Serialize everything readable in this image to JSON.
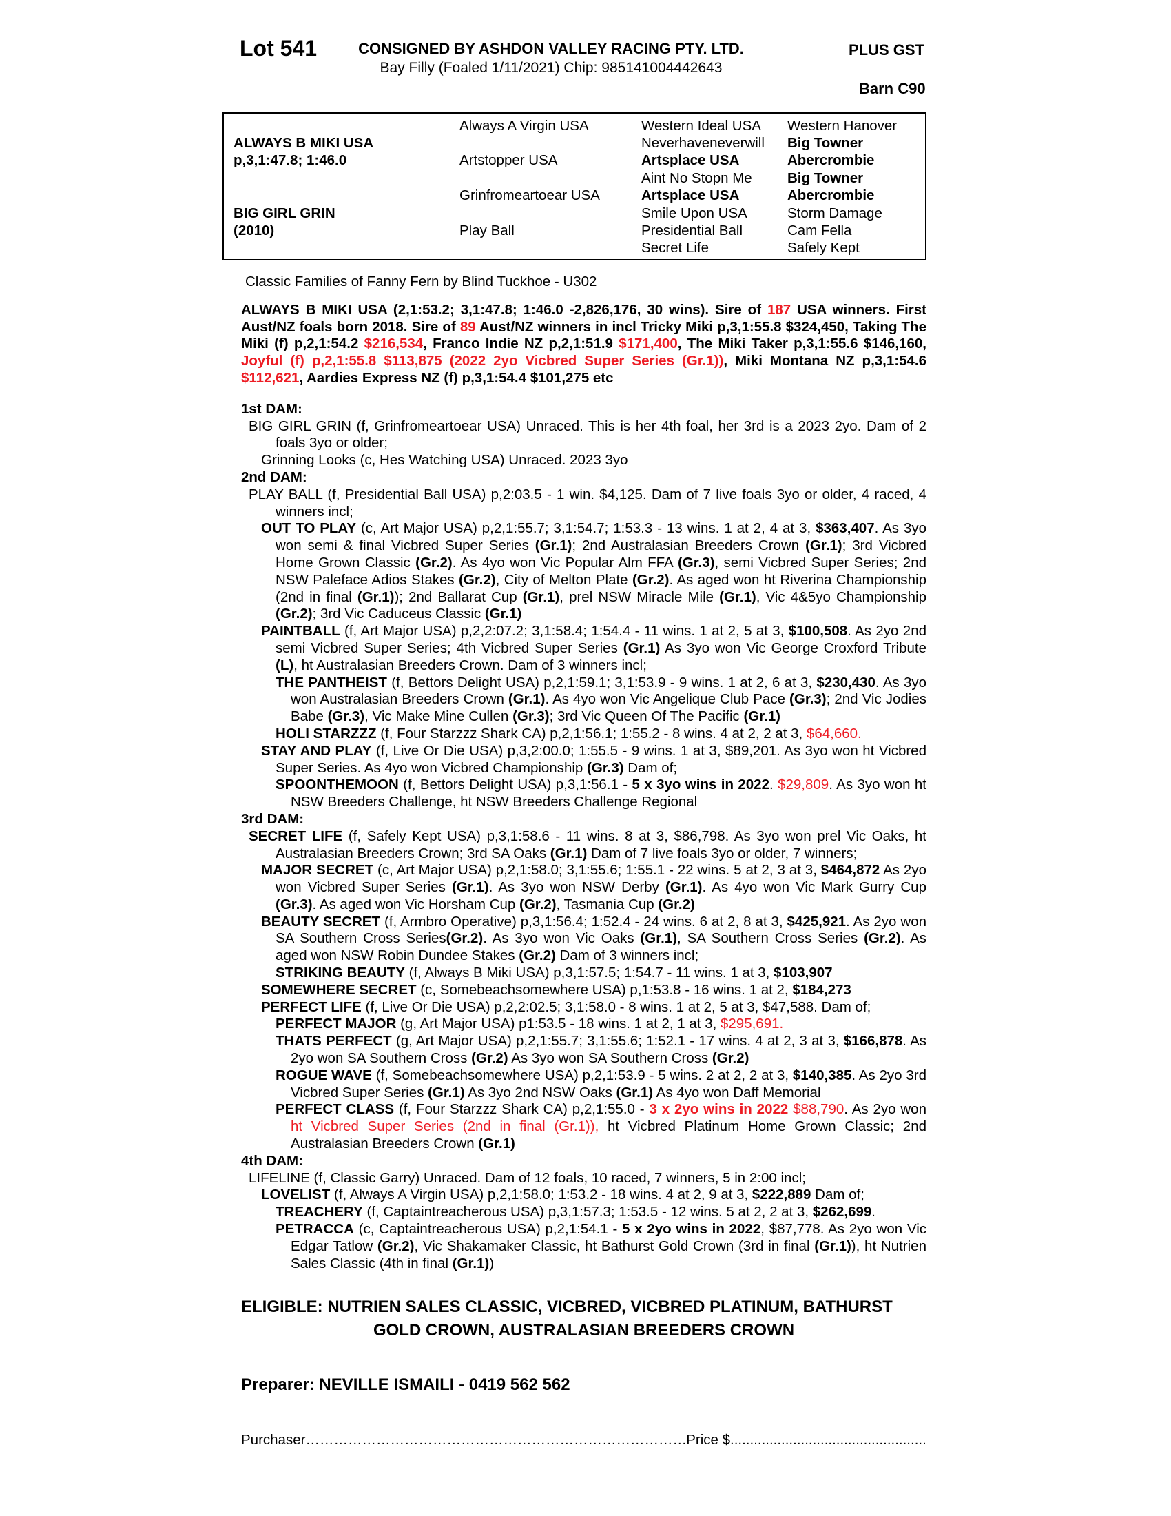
{
  "colors": {
    "text": "#000000",
    "accent_red": "#ed1c24",
    "page_bg": "#ffffff"
  },
  "header": {
    "lot": "Lot 541",
    "consignor": "CONSIGNED BY ASHDON VALLEY RACING PTY. LTD.",
    "plus_gst": "PLUS GST",
    "description": "Bay Filly (Foaled 1/11/2021) Chip: 985141004442643",
    "barn": "Barn C90"
  },
  "pedigree_table": {
    "cells": [
      {
        "row": 2,
        "col": 1,
        "t": "ALWAYS B MIKI USA",
        "b": true
      },
      {
        "row": 3,
        "col": 1,
        "t": "p,3,1:47.8; 1:46.0",
        "b": true
      },
      {
        "row": 6,
        "col": 1,
        "t": "BIG GIRL GRIN",
        "b": true
      },
      {
        "row": 7,
        "col": 1,
        "t": "(2010)",
        "b": true
      },
      {
        "row": 1,
        "col": 2,
        "t": "Always A Virgin USA",
        "b": false
      },
      {
        "row": 3,
        "col": 2,
        "t": "Artstopper USA",
        "b": false
      },
      {
        "row": 5,
        "col": 2,
        "t": "Grinfromeartoear USA",
        "b": false
      },
      {
        "row": 7,
        "col": 2,
        "t": "Play Ball",
        "b": false
      },
      {
        "row": 1,
        "col": 3,
        "t": "Western Ideal USA",
        "b": false
      },
      {
        "row": 2,
        "col": 3,
        "t": "Neverhaveneverwill",
        "b": false
      },
      {
        "row": 3,
        "col": 3,
        "t": "Artsplace USA",
        "b": true
      },
      {
        "row": 4,
        "col": 3,
        "t": "Aint No Stopn Me",
        "b": false
      },
      {
        "row": 5,
        "col": 3,
        "t": "Artsplace USA",
        "b": true
      },
      {
        "row": 6,
        "col": 3,
        "t": "Smile Upon USA",
        "b": false
      },
      {
        "row": 7,
        "col": 3,
        "t": "Presidential Ball",
        "b": false
      },
      {
        "row": 8,
        "col": 3,
        "t": "Secret Life",
        "b": false
      },
      {
        "row": 1,
        "col": 4,
        "t": "Western Hanover",
        "b": false
      },
      {
        "row": 2,
        "col": 4,
        "t": "Big Towner",
        "b": true
      },
      {
        "row": 3,
        "col": 4,
        "t": "Abercrombie",
        "b": true
      },
      {
        "row": 4,
        "col": 4,
        "t": "Big Towner",
        "b": true
      },
      {
        "row": 5,
        "col": 4,
        "t": "Abercrombie",
        "b": true
      },
      {
        "row": 6,
        "col": 4,
        "t": "Storm Damage",
        "b": false
      },
      {
        "row": 7,
        "col": 4,
        "t": "Cam Fella",
        "b": false
      },
      {
        "row": 8,
        "col": 4,
        "t": "Safely Kept",
        "b": false
      }
    ]
  },
  "family_line": "Classic Families of Fanny Fern by Blind Tuckhoe - U302",
  "sire_summary": {
    "runs": [
      [
        "ALWAYS B MIKI USA (2,1:53.2; 3,1:47.8; 1:46.0 -2,826,176, 30 wins). Sire of ",
        "b"
      ],
      [
        "187",
        "br"
      ],
      [
        " USA winners. First Aust/NZ foals born 2018. Sire of ",
        "b"
      ],
      [
        "89",
        "br"
      ],
      [
        " Aust/NZ winners in incl Tricky Miki p,3,1:55.8 $324,450, Taking The Miki (f) p,2,1:54.2 ",
        "b"
      ],
      [
        "$216,534",
        "br"
      ],
      [
        ", Franco Indie NZ p,2,1:51.9 ",
        "b"
      ],
      [
        "$171,400",
        "br"
      ],
      [
        ", The Miki Taker p,3,1:55.6 $146,160, ",
        "b"
      ],
      [
        "Joyful (f) p,2,1:55.8 $113,875 (2022 2yo Vicbred Super Series (Gr.1))",
        "br"
      ],
      [
        ", Miki Montana NZ p,3,1:54.6 ",
        "b"
      ],
      [
        "$112,621",
        "br"
      ],
      [
        ", Aardies Express NZ (f) p,3,1:54.4 $101,275 etc",
        "b"
      ]
    ]
  },
  "body": [
    {
      "kind": "heading",
      "text": "1st DAM:"
    },
    {
      "kind": "para",
      "level": "dam",
      "runs": [
        [
          "BIG GIRL GRIN (f, Grinfromeartoear USA) Unraced. This is her 4th foal, her 3rd is a 2023 2yo. Dam of 2 foals 3yo or older;",
          ""
        ]
      ]
    },
    {
      "kind": "para",
      "level": "l1",
      "runs": [
        [
          "Grinning Looks (c, Hes Watching USA) Unraced. 2023 3yo",
          ""
        ]
      ]
    },
    {
      "kind": "heading",
      "text": "2nd DAM:"
    },
    {
      "kind": "para",
      "level": "dam",
      "runs": [
        [
          "PLAY BALL (f, Presidential Ball USA) p,2:03.5 - 1 win. $4,125. Dam of 7 live foals 3yo or older, 4 raced, 4 winners incl;",
          ""
        ]
      ]
    },
    {
      "kind": "para",
      "level": "l1",
      "runs": [
        [
          "OUT TO PLAY",
          "b"
        ],
        [
          " (c, Art Major USA) p,2,1:55.7; 3,1:54.7; 1:53.3 - 13 wins. 1 at 2, 4 at 3, ",
          ""
        ],
        [
          "$363,407",
          "b"
        ],
        [
          ". As 3yo won semi & final Vicbred Super Series ",
          ""
        ],
        [
          "(Gr.1)",
          "b"
        ],
        [
          "; 2nd Australasian Breeders Crown ",
          ""
        ],
        [
          "(Gr.1)",
          "b"
        ],
        [
          "; 3rd Vicbred Home Grown Classic ",
          ""
        ],
        [
          "(Gr.2)",
          "b"
        ],
        [
          ". As 4yo won Vic Popular Alm FFA ",
          ""
        ],
        [
          "(Gr.3)",
          "b"
        ],
        [
          ", semi Vicbred Super Series; 2nd NSW Paleface Adios Stakes ",
          ""
        ],
        [
          "(Gr.2)",
          "b"
        ],
        [
          ", City of Melton Plate ",
          ""
        ],
        [
          "(Gr.2)",
          "b"
        ],
        [
          ". As aged won ht Riverina Championship (2nd in final ",
          ""
        ],
        [
          "(Gr.1)",
          "b"
        ],
        [
          "); 2nd Ballarat Cup ",
          ""
        ],
        [
          "(Gr.1)",
          "b"
        ],
        [
          ", prel NSW Miracle Mile ",
          ""
        ],
        [
          "(Gr.1)",
          "b"
        ],
        [
          ", Vic 4&5yo Championship ",
          ""
        ],
        [
          "(Gr.2)",
          "b"
        ],
        [
          "; 3rd Vic Caduceus Classic ",
          ""
        ],
        [
          "(Gr.1)",
          "b"
        ]
      ]
    },
    {
      "kind": "para",
      "level": "l1",
      "runs": [
        [
          "PAINTBALL",
          "b"
        ],
        [
          " (f, Art Major USA) p,2,2:07.2; 3,1:58.4; 1:54.4 - 11 wins. 1 at 2, 5 at 3, ",
          ""
        ],
        [
          "$100,508",
          "b"
        ],
        [
          ". As 2yo 2nd semi Vicbred Super Series; 4th Vicbred Super Series ",
          ""
        ],
        [
          "(Gr.1)",
          "b"
        ],
        [
          " As 3yo won Vic George Croxford Tribute ",
          ""
        ],
        [
          "(L)",
          "b"
        ],
        [
          ", ht Australasian Breeders Crown. Dam of 3 winners incl;",
          ""
        ]
      ]
    },
    {
      "kind": "para",
      "level": "l2",
      "runs": [
        [
          "THE PANTHEIST",
          "b"
        ],
        [
          " (f, Bettors Delight USA) p,2,1:59.1; 3,1:53.9 - 9 wins. 1 at 2, 6 at 3, ",
          ""
        ],
        [
          "$230,430",
          "b"
        ],
        [
          ". As 3yo won Australasian Breeders Crown ",
          ""
        ],
        [
          "(Gr.1)",
          "b"
        ],
        [
          ". As 4yo won Vic Angelique Club Pace ",
          ""
        ],
        [
          "(Gr.3)",
          "b"
        ],
        [
          "; 2nd Vic Jodies Babe ",
          ""
        ],
        [
          "(Gr.3)",
          "b"
        ],
        [
          ", Vic Make Mine Cullen ",
          ""
        ],
        [
          "(Gr.3)",
          "b"
        ],
        [
          "; 3rd Vic Queen Of The Pacific ",
          ""
        ],
        [
          "(Gr.1)",
          "b"
        ]
      ]
    },
    {
      "kind": "para",
      "level": "l2",
      "runs": [
        [
          "HOLI STARZZZ",
          "b"
        ],
        [
          " (f, Four Starzzz Shark CA) p,2,1:56.1; 1:55.2 - 8 wins. 4 at 2, 2 at 3, ",
          ""
        ],
        [
          "$64,660.",
          "r"
        ]
      ]
    },
    {
      "kind": "para",
      "level": "l1",
      "runs": [
        [
          "STAY AND PLAY",
          "b"
        ],
        [
          " (f, Live Or Die USA) p,3,2:00.0; 1:55.5 - 9 wins. 1 at 3, $89,201. As 3yo won ht Vicbred Super Series. As 4yo won Vicbred Championship ",
          ""
        ],
        [
          "(Gr.3)",
          "b"
        ],
        [
          " Dam of;",
          ""
        ]
      ]
    },
    {
      "kind": "para",
      "level": "l2",
      "runs": [
        [
          "SPOONTHEMOON",
          "b"
        ],
        [
          " (f, Bettors Delight USA) p,3,1:56.1 - ",
          ""
        ],
        [
          "5 x 3yo wins in 2022",
          "b"
        ],
        [
          ". ",
          ""
        ],
        [
          "$29,809",
          "r"
        ],
        [
          ". As 3yo won ht NSW Breeders Challenge, ht NSW Breeders Challenge Regional",
          ""
        ]
      ]
    },
    {
      "kind": "heading",
      "text": "3rd DAM:"
    },
    {
      "kind": "para",
      "level": "dam",
      "runs": [
        [
          "SECRET LIFE",
          "b"
        ],
        [
          " (f, Safely Kept USA) p,3,1:58.6 - 11 wins. 8 at 3, $86,798. As 3yo won prel Vic Oaks, ht Australasian Breeders Crown; 3rd SA Oaks ",
          ""
        ],
        [
          "(Gr.1)",
          "b"
        ],
        [
          " Dam of 7 live foals 3yo or older, 7 winners;",
          ""
        ]
      ]
    },
    {
      "kind": "para",
      "level": "l1",
      "runs": [
        [
          "MAJOR SECRET",
          "b"
        ],
        [
          " (c, Art Major USA) p,2,1:58.0; 3,1:55.6; 1:55.1 - 22 wins. 5 at 2, 3 at 3, ",
          ""
        ],
        [
          "$464,872",
          "b"
        ],
        [
          " As 2yo won Vicbred Super Series ",
          ""
        ],
        [
          "(Gr.1)",
          "b"
        ],
        [
          ". As 3yo won NSW Derby ",
          ""
        ],
        [
          "(Gr.1)",
          "b"
        ],
        [
          ". As 4yo won Vic Mark Gurry Cup ",
          ""
        ],
        [
          "(Gr.3)",
          "b"
        ],
        [
          ". As aged won Vic Horsham Cup ",
          ""
        ],
        [
          "(Gr.2)",
          "b"
        ],
        [
          ", Tasmania Cup ",
          ""
        ],
        [
          "(Gr.2)",
          "b"
        ]
      ]
    },
    {
      "kind": "para",
      "level": "l1",
      "runs": [
        [
          "BEAUTY SECRET",
          "b"
        ],
        [
          " (f, Armbro Operative) p,3,1:56.4; 1:52.4 - 24 wins. 6 at 2, 8 at 3, ",
          ""
        ],
        [
          "$425,921",
          "b"
        ],
        [
          ". As 2yo won SA Southern Cross Series",
          ""
        ],
        [
          "(Gr.2)",
          "b"
        ],
        [
          ". As 3yo won Vic Oaks ",
          ""
        ],
        [
          "(Gr.1)",
          "b"
        ],
        [
          ", SA Southern Cross Series ",
          ""
        ],
        [
          "(Gr.2)",
          "b"
        ],
        [
          ". As aged won NSW Robin Dundee Stakes ",
          ""
        ],
        [
          "(Gr.2)",
          "b"
        ],
        [
          " Dam of 3 winners incl;",
          ""
        ]
      ]
    },
    {
      "kind": "para",
      "level": "l2",
      "runs": [
        [
          "STRIKING BEAUTY",
          "b"
        ],
        [
          " (f, Always B Miki USA) p,3,1:57.5; 1:54.7 - 11 wins. 1 at 3, ",
          ""
        ],
        [
          "$103,907",
          "b"
        ]
      ]
    },
    {
      "kind": "para",
      "level": "l1",
      "runs": [
        [
          "SOMEWHERE SECRET",
          "b"
        ],
        [
          " (c, Somebeachsomewhere USA) p,1:53.8 - 16 wins. 1 at 2, ",
          ""
        ],
        [
          "$184,273",
          "b"
        ]
      ]
    },
    {
      "kind": "para",
      "level": "l1",
      "runs": [
        [
          "PERFECT LIFE",
          "b"
        ],
        [
          " (f, Live Or Die USA) p,2,2:02.5; 3,1:58.0 - 8 wins. 1 at 2, 5 at 3, $47,588. Dam of;",
          ""
        ]
      ]
    },
    {
      "kind": "para",
      "level": "l2",
      "runs": [
        [
          "PERFECT MAJOR",
          "b"
        ],
        [
          " (g, Art Major USA) p1:53.5 - 18 wins. 1 at 2, 1 at 3, ",
          ""
        ],
        [
          "$295,691.",
          "r"
        ]
      ]
    },
    {
      "kind": "para",
      "level": "l2",
      "runs": [
        [
          "THATS PERFECT",
          "b"
        ],
        [
          " (g, Art Major USA) p,2,1:55.7; 3,1:55.6; 1:52.1 - 17 wins. 4 at 2, 3 at 3, ",
          ""
        ],
        [
          "$166,878",
          "b"
        ],
        [
          ". As 2yo won SA Southern Cross ",
          ""
        ],
        [
          "(Gr.2)",
          "b"
        ],
        [
          " As 3yo won SA Southern Cross ",
          ""
        ],
        [
          "(Gr.2)",
          "b"
        ]
      ]
    },
    {
      "kind": "para",
      "level": "l2",
      "runs": [
        [
          "ROGUE WAVE",
          "b"
        ],
        [
          " (f, Somebeachsomewhere USA) p,2,1:53.9 - 5 wins. 2 at 2, 2 at 3, ",
          ""
        ],
        [
          "$140,385",
          "b"
        ],
        [
          ". As 2yo 3rd Vicbred Super Series ",
          ""
        ],
        [
          "(Gr.1)",
          "b"
        ],
        [
          " As 3yo 2nd NSW Oaks ",
          ""
        ],
        [
          "(Gr.1)",
          "b"
        ],
        [
          " As 4yo won Daff Memorial",
          ""
        ]
      ]
    },
    {
      "kind": "para",
      "level": "l2",
      "runs": [
        [
          "PERFECT CLASS",
          "b"
        ],
        [
          " (f, Four Starzzz Shark CA) p,2,1:55.0 - ",
          ""
        ],
        [
          "3 x 2yo wins in 2022",
          "br"
        ],
        [
          " ",
          ""
        ],
        [
          "$88,790",
          "r"
        ],
        [
          ". As 2yo won ",
          ""
        ],
        [
          "ht Vicbred Super Series (2nd in final (Gr.1)),",
          "r"
        ],
        [
          " ht Vicbred Platinum Home Grown Classic; 2nd Australasian Breeders Crown ",
          ""
        ],
        [
          "(Gr.1)",
          "b"
        ]
      ]
    },
    {
      "kind": "heading",
      "text": "4th DAM:"
    },
    {
      "kind": "para",
      "level": "dam",
      "runs": [
        [
          "LIFELINE (f, Classic Garry) Unraced. Dam of 12 foals, 10 raced, 7 winners, 5 in 2:00 incl;",
          ""
        ]
      ]
    },
    {
      "kind": "para",
      "level": "l1",
      "runs": [
        [
          "LOVELIST",
          "b"
        ],
        [
          " (f, Always A Virgin USA) p,2,1:58.0; 1:53.2 - 18 wins. 4 at 2, 9 at 3, ",
          ""
        ],
        [
          "$222,889",
          "b"
        ],
        [
          " Dam of;",
          ""
        ]
      ]
    },
    {
      "kind": "para",
      "level": "l2",
      "runs": [
        [
          "TREACHERY",
          "b"
        ],
        [
          " (f, Captaintreacherous USA) p,3,1:57.3; 1:53.5 - 12 wins. 5 at 2, 2 at 3, ",
          ""
        ],
        [
          "$262,699",
          "b"
        ],
        [
          ".",
          ""
        ]
      ]
    },
    {
      "kind": "para",
      "level": "l2",
      "runs": [
        [
          "PETRACCA",
          "b"
        ],
        [
          " (c, Captaintreacherous USA) p,2,1:54.1 - ",
          ""
        ],
        [
          "5 x 2yo wins in 2022",
          "b"
        ],
        [
          ", $87,778. As 2yo won Vic Edgar Tatlow ",
          ""
        ],
        [
          "(Gr.2)",
          "b"
        ],
        [
          ", Vic Shakamaker Classic, ht Bathurst Gold Crown (3rd in final ",
          ""
        ],
        [
          "(Gr.1)",
          "b"
        ],
        [
          "), ht Nutrien Sales Classic (4th in final ",
          ""
        ],
        [
          "(Gr.1)",
          "b"
        ],
        [
          ")",
          ""
        ]
      ]
    }
  ],
  "eligible": {
    "line1": "ELIGIBLE: NUTRIEN SALES CLASSIC, VICBRED, VICBRED PLATINUM, BATHURST",
    "line2": "GOLD CROWN, AUSTRALASIAN BREEDERS CROWN"
  },
  "preparer": "Preparer: NEVILLE ISMAILI - 0419 562 562",
  "purchaser_line": {
    "purchaser_label": "Purchaser",
    "leader1": "……………………………………………………………………………………………………………..",
    "price_label": "Price $",
    "leader2": "........................................................................"
  }
}
